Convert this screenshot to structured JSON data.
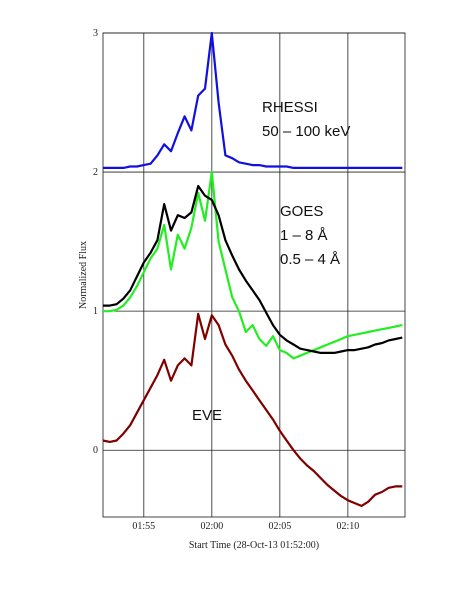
{
  "chart_data": {
    "type": "line",
    "xlabel": "Start Time (28-Oct-13 01:52:00)",
    "ylabel": "Normalized Flux",
    "annotations": [
      "RHESSI",
      "50 – 100 keV",
      "GOES",
      "1 – 8 Å",
      "0.5 – 4 Å",
      "EVE"
    ],
    "x": [
      0,
      0.5,
      1,
      1.5,
      2,
      2.5,
      3,
      3.5,
      4,
      4.5,
      5,
      5.5,
      6,
      6.5,
      7,
      7.5,
      8,
      8.5,
      9,
      9.5,
      10,
      10.5,
      11,
      11.5,
      12,
      12.5,
      13,
      13.5,
      14,
      14.5,
      15,
      15.5,
      16,
      16.5,
      17,
      17.5,
      18,
      18.5,
      19,
      19.5,
      20,
      20.5,
      21,
      21.5,
      22
    ],
    "series": [
      {
        "color": "#1010e0",
        "values": [
          2.03,
          2.03,
          2.03,
          2.03,
          2.04,
          2.04,
          2.05,
          2.06,
          2.12,
          2.2,
          2.15,
          2.28,
          2.4,
          2.3,
          2.55,
          2.6,
          3.0,
          2.5,
          2.12,
          2.1,
          2.07,
          2.06,
          2.05,
          2.05,
          2.04,
          2.04,
          2.04,
          2.04,
          2.03,
          2.03,
          2.03,
          2.03,
          2.03,
          2.03,
          2.03,
          2.03,
          2.03,
          2.03,
          2.03,
          2.03,
          2.03,
          2.03,
          2.03,
          2.03,
          2.03
        ]
      },
      {
        "color": "#22ee22",
        "values": [
          1.0,
          1.0,
          1.01,
          1.04,
          1.1,
          1.18,
          1.28,
          1.38,
          1.45,
          1.62,
          1.3,
          1.55,
          1.45,
          1.6,
          1.85,
          1.65,
          2.0,
          1.5,
          1.3,
          1.1,
          1.0,
          0.85,
          0.9,
          0.8,
          0.75,
          0.82,
          0.72,
          0.7,
          0.66,
          0.68,
          0.7,
          0.72,
          0.74,
          0.76,
          0.78,
          0.8,
          0.82,
          0.83,
          0.84,
          0.85,
          0.86,
          0.87,
          0.88,
          0.89,
          0.9
        ]
      },
      {
        "color": "#000000",
        "values": [
          1.04,
          1.04,
          1.05,
          1.09,
          1.15,
          1.25,
          1.35,
          1.42,
          1.51,
          1.77,
          1.58,
          1.69,
          1.67,
          1.71,
          1.9,
          1.83,
          1.8,
          1.69,
          1.51,
          1.4,
          1.3,
          1.22,
          1.15,
          1.08,
          0.99,
          0.9,
          0.83,
          0.79,
          0.76,
          0.73,
          0.72,
          0.71,
          0.7,
          0.7,
          0.7,
          0.71,
          0.72,
          0.72,
          0.73,
          0.74,
          0.76,
          0.77,
          0.79,
          0.8,
          0.81
        ]
      },
      {
        "color": "#800000",
        "values": [
          0.07,
          0.06,
          0.07,
          0.12,
          0.18,
          0.27,
          0.36,
          0.45,
          0.54,
          0.65,
          0.5,
          0.61,
          0.66,
          0.61,
          0.98,
          0.8,
          0.97,
          0.9,
          0.76,
          0.68,
          0.58,
          0.5,
          0.43,
          0.36,
          0.29,
          0.22,
          0.14,
          0.07,
          0,
          -0.06,
          -0.11,
          -0.15,
          -0.2,
          -0.25,
          -0.29,
          -0.33,
          -0.36,
          -0.38,
          -0.4,
          -0.37,
          -0.32,
          -0.3,
          -0.27,
          -0.26,
          -0.26
        ]
      }
    ],
    "xlim": [
      0,
      22.2
    ],
    "xticks": [
      {
        "value": 3,
        "label": "01:55"
      },
      {
        "value": 8,
        "label": "02:00"
      },
      {
        "value": 13,
        "label": "02:05"
      },
      {
        "value": 18,
        "label": "02:10"
      }
    ],
    "ylim": [
      -0.48,
      3
    ],
    "yticks": [
      0,
      1,
      2,
      3
    ],
    "grid": true
  }
}
